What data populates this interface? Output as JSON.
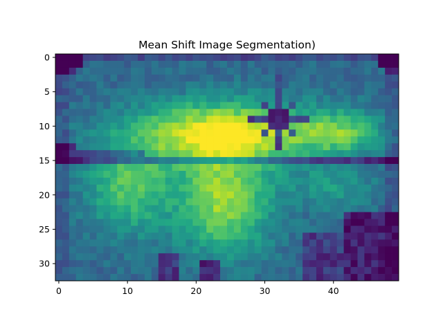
{
  "chart_data": {
    "type": "heatmap",
    "title": "Mean Shift Image Segmentation)",
    "xlabel": "",
    "ylabel": "",
    "colormap": "viridis",
    "columns": 50,
    "rows": 33,
    "xlim": [
      -0.5,
      49.5
    ],
    "ylim": [
      32.5,
      -0.5
    ],
    "x_ticks": [
      0,
      10,
      20,
      30,
      40
    ],
    "y_ticks": [
      0,
      5,
      10,
      15,
      20,
      25,
      30
    ],
    "x_tick_labels": [
      "0",
      "10",
      "20",
      "30",
      "40"
    ],
    "y_tick_labels": [
      "0",
      "5",
      "10",
      "15",
      "20",
      "25",
      "30"
    ],
    "colors": {
      "cmap_low": "#440154",
      "cmap_mid": "#21918c",
      "cmap_high": "#fde725",
      "axis": "#000000"
    }
  }
}
